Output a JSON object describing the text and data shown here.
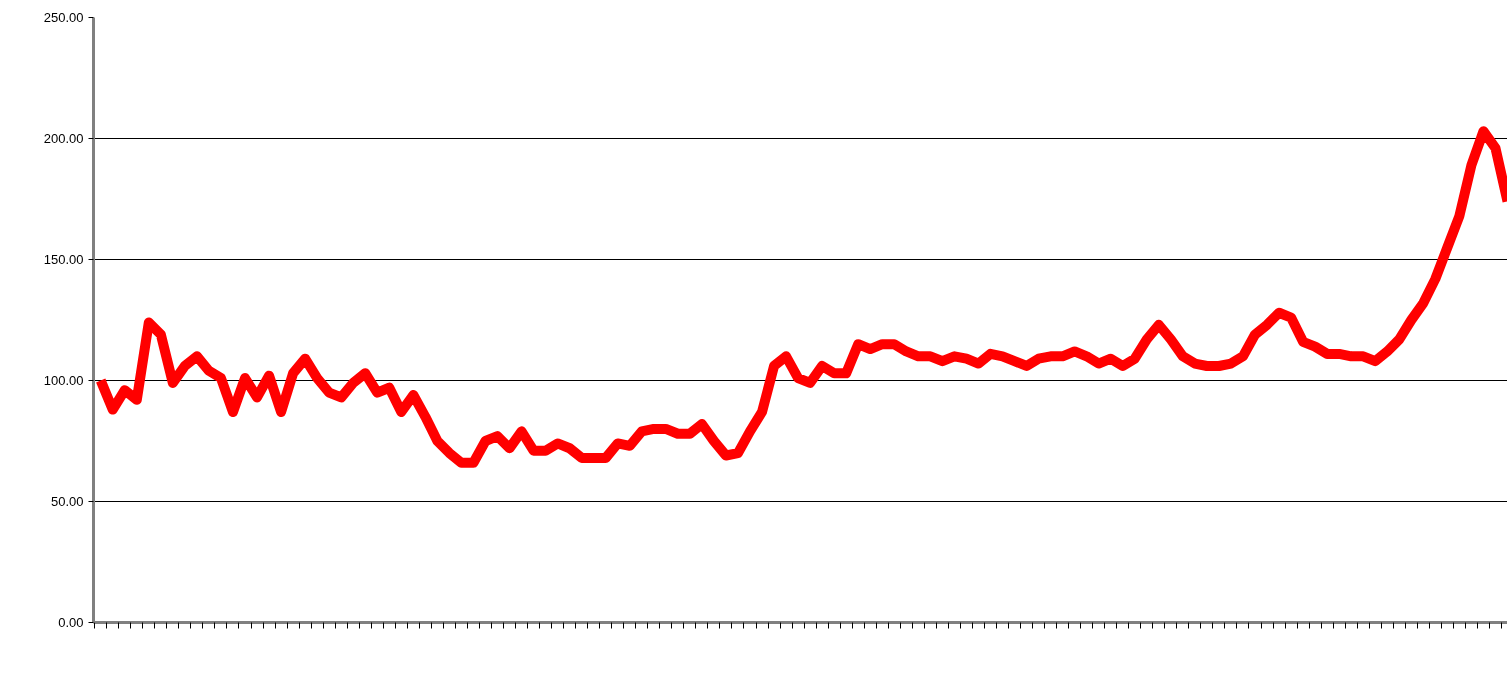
{
  "chart_data": {
    "type": "line",
    "categories": [
      null,
      null,
      null,
      null,
      null,
      null,
      null,
      null,
      null,
      null,
      null,
      null,
      null,
      null,
      null,
      null,
      null,
      null,
      null,
      null,
      null,
      null,
      null,
      null,
      null,
      null,
      null,
      null,
      null,
      null,
      null,
      null,
      null,
      null,
      null,
      null,
      null,
      null,
      null,
      null,
      null,
      null,
      null,
      null,
      null,
      null,
      null,
      null,
      null,
      null,
      null,
      null,
      null,
      null,
      null,
      null,
      null,
      null,
      null,
      null,
      null,
      null,
      null,
      null,
      null,
      null,
      null,
      null,
      null,
      null,
      null,
      null,
      null,
      null,
      null,
      null,
      null,
      null,
      null,
      null,
      null,
      null,
      null,
      null,
      null,
      null,
      null,
      null,
      null,
      null,
      null,
      null,
      null,
      null,
      null,
      null,
      null,
      null,
      null,
      null,
      null,
      null,
      null,
      null,
      null,
      null,
      null,
      null,
      null,
      null,
      null,
      null,
      null,
      null,
      null,
      null,
      null,
      null
    ],
    "series": [
      {
        "color": "#ff0000",
        "values": [
          100,
          88,
          96,
          92,
          124,
          119,
          99,
          106,
          110,
          104,
          101,
          87,
          101,
          93,
          102,
          87,
          103,
          109,
          101,
          95,
          93,
          99,
          103,
          95,
          97,
          87,
          94,
          85,
          75,
          70,
          66,
          66,
          75,
          77,
          72,
          79,
          71,
          71,
          74,
          72,
          68,
          68,
          68,
          74,
          73,
          79,
          80,
          80,
          78,
          78,
          82,
          75,
          69,
          70,
          79,
          87,
          106,
          110,
          101,
          99,
          106,
          103,
          103,
          115,
          113,
          115,
          115,
          112,
          110,
          110,
          108,
          110,
          109,
          107,
          111,
          110,
          108,
          106,
          109,
          110,
          110,
          112,
          110,
          107,
          109,
          106,
          109,
          117,
          123,
          117,
          110,
          107,
          106,
          106,
          107,
          110,
          119,
          123,
          128,
          126,
          116,
          114,
          111,
          111,
          110,
          110,
          108,
          112,
          117,
          125,
          132,
          142,
          155,
          168,
          189,
          203,
          196,
          174
        ]
      }
    ],
    "ylim": [
      0,
      250
    ],
    "yticks": [
      {
        "value": 0,
        "label": "0.00"
      },
      {
        "value": 50,
        "label": "50.00"
      },
      {
        "value": 100,
        "label": "100.00"
      },
      {
        "value": 150,
        "label": "150.00"
      },
      {
        "value": 200,
        "label": "200.00"
      },
      {
        "value": 250,
        "label": "250.00"
      }
    ],
    "grid": "y",
    "marker": "none",
    "line_style": "solid"
  }
}
